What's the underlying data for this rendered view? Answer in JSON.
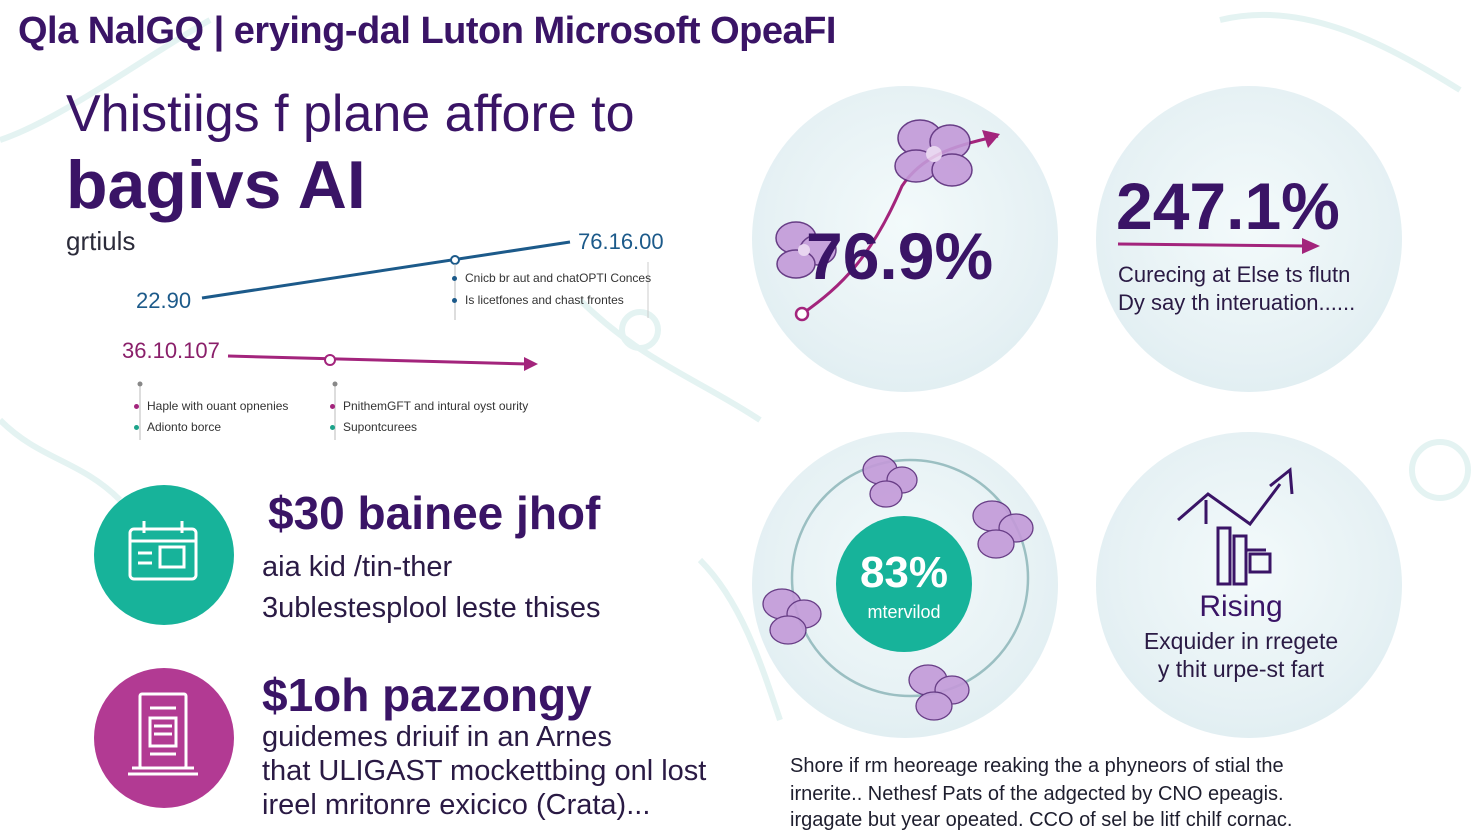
{
  "header": {
    "title": "Qla NalGQ | erying-dal Luton Microsoft OpeaFI"
  },
  "hero": {
    "line1": "Vhistiigs f plane affore to",
    "line2": "bagivs AI",
    "subhead": "grtiuls"
  },
  "trend_chart": {
    "upper_start_label": "22.90",
    "upper_end_label": "76.16.00",
    "upper_notes": [
      "Cnicb br aut and chatOPTI Conces",
      "Is licetfones and chast frontes"
    ],
    "lower_start_label": "36.10.107",
    "lower_notes_left": [
      "Haple with ouant opnenies",
      "Adionto borce"
    ],
    "lower_notes_right": [
      "PnithemGFT and intural oyst ourity",
      "Supontcurees"
    ],
    "colors": {
      "upper": "#1c5a8a",
      "lower": "#a3247c",
      "green_dot": "#1ca38a"
    }
  },
  "features": [
    {
      "icon": "calendar-icon",
      "color": "#17b39a",
      "title": "$30 bainee jhof",
      "lines": [
        "aia kid /tin-ther",
        "3ublestesplool leste thises"
      ]
    },
    {
      "icon": "document-icon",
      "color": "#b23a93",
      "title": "$1oh pazzongy",
      "lines": [
        "guidemes driuif in an Arnes",
        "that ULIGAST mockettbing onl lost",
        "ireel mritonre exicico (Crata)..."
      ]
    }
  ],
  "stats": {
    "orchid_stat": {
      "value": "76.9%"
    },
    "growth_stat": {
      "value": "247.1%",
      "desc": [
        "Curecing at Else ts flutn",
        "Dy say th interuation......"
      ]
    },
    "ring_stat": {
      "value": "83%",
      "label": "mtervilod",
      "color": "#17b39a"
    },
    "rising": {
      "icon": "rising-chart-icon",
      "title": "Rising",
      "desc": [
        "Exquider in rregete",
        "y thit urpe-st fart"
      ]
    }
  },
  "footer": {
    "lines": [
      "Shore if rm heoreage reaking the a phyneors of stial the",
      "irnerite.. Nethesf Pats of the adgected by CNO epeagis.",
      "irgagate but year opeated. CCO of sel be litf chilf cornac."
    ]
  },
  "colors": {
    "primary": "#3a1466",
    "accent_pink": "#a3247c",
    "accent_teal": "#17b39a",
    "orchid": "#b58ad1"
  }
}
